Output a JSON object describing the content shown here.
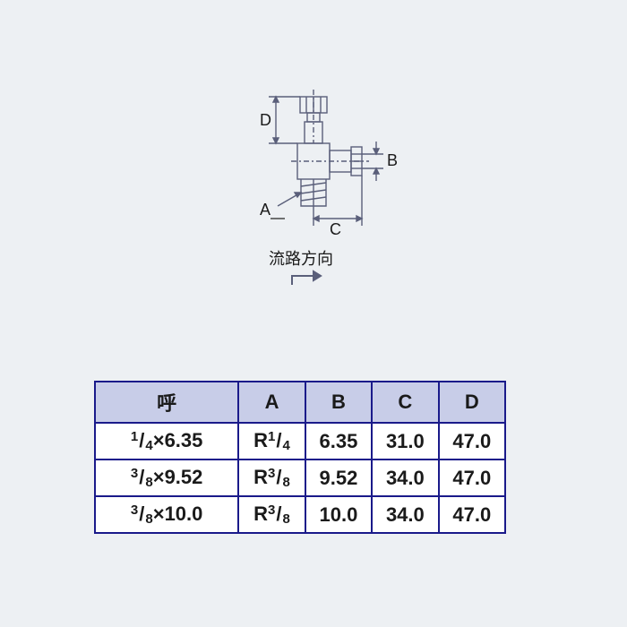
{
  "diagram": {
    "labels": {
      "A": "A",
      "B": "B",
      "C": "C",
      "D": "D"
    },
    "flow_text": "流路方向",
    "stroke_color": "#5a5f7a",
    "stroke_width": 1.4,
    "fill_color": "none"
  },
  "table": {
    "border_color": "#1a1a8a",
    "header_bg": "#c8cde8",
    "cell_bg": "#ffffff",
    "text_color": "#1a1a1a",
    "font_size": 22,
    "headers": [
      "呼",
      "A",
      "B",
      "C",
      "D"
    ],
    "rows": [
      {
        "name_num": "1",
        "name_den": "4",
        "name_val": "6.35",
        "A_pre": "R",
        "A_num": "1",
        "A_den": "4",
        "B": "6.35",
        "C": "31.0",
        "D": "47.0"
      },
      {
        "name_num": "3",
        "name_den": "8",
        "name_val": "9.52",
        "A_pre": "R",
        "A_num": "3",
        "A_den": "8",
        "B": "9.52",
        "C": "34.0",
        "D": "47.0"
      },
      {
        "name_num": "3",
        "name_den": "8",
        "name_val": "10.0",
        "A_pre": "R",
        "A_num": "3",
        "A_den": "8",
        "B": "10.0",
        "C": "34.0",
        "D": "47.0"
      }
    ]
  }
}
